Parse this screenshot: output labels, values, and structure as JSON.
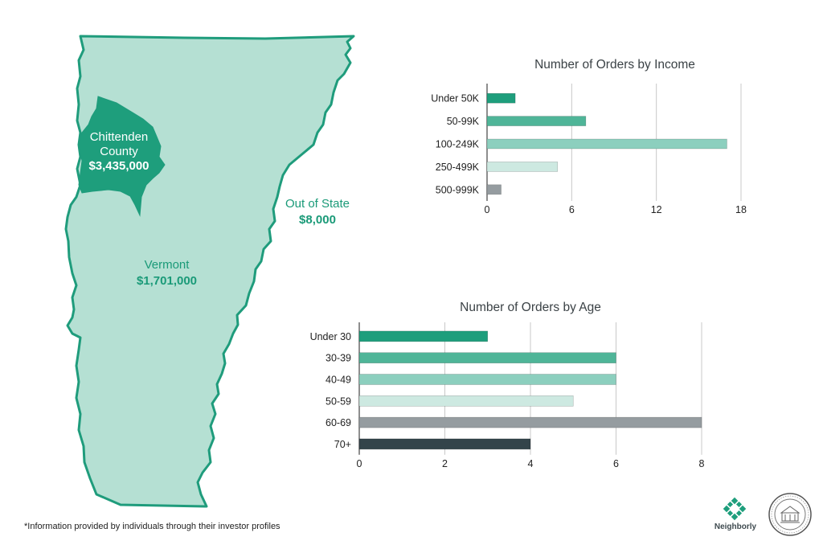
{
  "map": {
    "chittenden": {
      "name_line1": "Chittenden",
      "name_line2": "County",
      "value": "$3,435,000"
    },
    "vermont": {
      "name": "Vermont",
      "value": "$1,701,000"
    },
    "out_of_state": {
      "name": "Out of State",
      "value": "$8,000"
    },
    "colors": {
      "state_fill": "#b5e0d3",
      "state_stroke": "#1f9c7c",
      "county_fill": "#1e9e7c",
      "label_green": "#1a9a78"
    }
  },
  "chart_data": [
    {
      "type": "bar",
      "orientation": "horizontal",
      "title": "Number of Orders by Income",
      "categories": [
        "Under 50K",
        "50-99K",
        "100-249K",
        "250-499K",
        "500-999K"
      ],
      "values": [
        2,
        7,
        17,
        5,
        1
      ],
      "colors": [
        "#1e9e7c",
        "#4fb598",
        "#8ccfbe",
        "#cde9e1",
        "#959ca0"
      ],
      "xlim": [
        0,
        18
      ],
      "xticks": [
        0,
        6,
        12,
        18
      ],
      "grid": true
    },
    {
      "type": "bar",
      "orientation": "horizontal",
      "title": "Number of Orders by Age",
      "categories": [
        "Under 30",
        "30-39",
        "40-49",
        "50-59",
        "60-69",
        "70+"
      ],
      "values": [
        3,
        6,
        6,
        5,
        8,
        4
      ],
      "colors": [
        "#1e9e7c",
        "#4fb598",
        "#8ccfbe",
        "#cde9e1",
        "#959ca0",
        "#33444a"
      ],
      "xlim": [
        0,
        8
      ],
      "xticks": [
        0,
        2,
        4,
        6,
        8
      ],
      "grid": true
    }
  ],
  "footnote": "*Information provided by individuals through their investor profiles",
  "logo": {
    "neighborly": "Neighborly",
    "neighborly_color": "#1e9e7c"
  }
}
